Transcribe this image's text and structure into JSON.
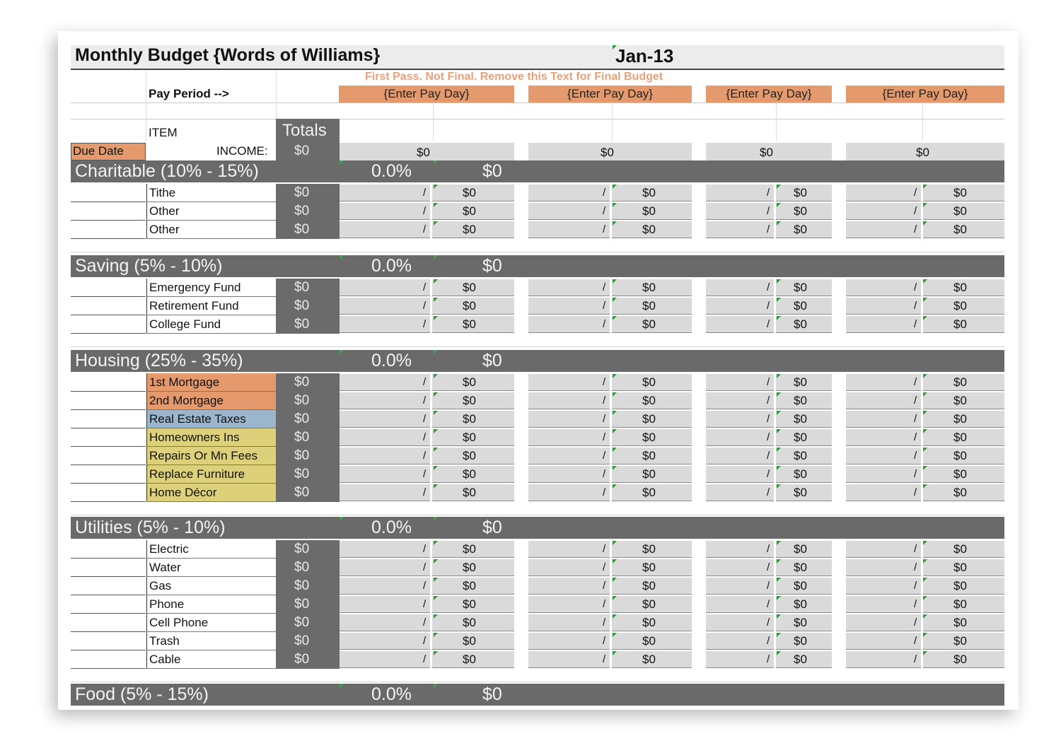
{
  "sheet": {
    "title": "Monthly Budget {Words of Williams}",
    "month": "Jan-13",
    "note": "First Pass. Not Final.  Remove this Text for Final Budget",
    "pay_period_label": "Pay Period -->",
    "pay_days": [
      "{Enter Pay Day}",
      "{Enter Pay Day}",
      "{Enter Pay Day}",
      "{Enter Pay Day}"
    ],
    "item_header": "ITEM",
    "totals_header": "Totals",
    "due_date_label": "Due Date",
    "income_label": "INCOME:",
    "income_total": "$0",
    "income_values": [
      "$0",
      "$0",
      "$0",
      "$0"
    ],
    "slash": "/",
    "colors": {
      "section_bg": "#6a6a6b",
      "accent_orange": "#e49a6c",
      "accent_blue": "#9bb5cc",
      "accent_yellow": "#dcd17a",
      "cell_grey": "#dadada",
      "note_text": "#e8a07a",
      "comment_marker": "#2c9a3b"
    },
    "sections": [
      {
        "name": "Charitable  (10% - 15%)",
        "percent": "0.0%",
        "amount": "$0",
        "items": [
          {
            "label": "Tithe",
            "total": "$0",
            "values": [
              "$0",
              "$0",
              "$0",
              "$0"
            ]
          },
          {
            "label": "Other",
            "total": "$0",
            "values": [
              "$0",
              "$0",
              "$0",
              "$0"
            ]
          },
          {
            "label": "Other",
            "total": "$0",
            "values": [
              "$0",
              "$0",
              "$0",
              "$0"
            ]
          }
        ]
      },
      {
        "name": "Saving (5% - 10%)",
        "percent": "0.0%",
        "amount": "$0",
        "items": [
          {
            "label": "Emergency Fund",
            "total": "$0",
            "values": [
              "$0",
              "$0",
              "$0",
              "$0"
            ]
          },
          {
            "label": "Retirement Fund",
            "total": "$0",
            "values": [
              "$0",
              "$0",
              "$0",
              "$0"
            ]
          },
          {
            "label": "College Fund",
            "total": "$0",
            "values": [
              "$0",
              "$0",
              "$0",
              "$0"
            ]
          }
        ]
      },
      {
        "name": "Housing (25% - 35%)",
        "percent": "0.0%",
        "amount": "$0",
        "items": [
          {
            "label": "1st Mortgage",
            "total": "$0",
            "values": [
              "$0",
              "$0",
              "$0",
              "$0"
            ],
            "highlight": "#e49a6c"
          },
          {
            "label": "2nd Mortgage",
            "total": "$0",
            "values": [
              "$0",
              "$0",
              "$0",
              "$0"
            ],
            "highlight": "#e49a6c"
          },
          {
            "label": "Real Estate Taxes",
            "total": "$0",
            "values": [
              "$0",
              "$0",
              "$0",
              "$0"
            ],
            "highlight": "#9bb5cc"
          },
          {
            "label": "Homeowners Ins",
            "total": "$0",
            "values": [
              "$0",
              "$0",
              "$0",
              "$0"
            ],
            "highlight": "#dcd17a"
          },
          {
            "label": "Repairs Or Mn Fees",
            "total": "$0",
            "values": [
              "$0",
              "$0",
              "$0",
              "$0"
            ],
            "highlight": "#dcd17a"
          },
          {
            "label": "Replace Furniture",
            "total": "$0",
            "values": [
              "$0",
              "$0",
              "$0",
              "$0"
            ],
            "highlight": "#dcd17a"
          },
          {
            "label": "Home Décor",
            "total": "$0",
            "values": [
              "$0",
              "$0",
              "$0",
              "$0"
            ],
            "highlight": "#dcd17a"
          }
        ]
      },
      {
        "name": "Utilities (5% - 10%)",
        "percent": "0.0%",
        "amount": "$0",
        "items": [
          {
            "label": "Electric",
            "total": "$0",
            "values": [
              "$0",
              "$0",
              "$0",
              "$0"
            ]
          },
          {
            "label": "Water",
            "total": "$0",
            "values": [
              "$0",
              "$0",
              "$0",
              "$0"
            ]
          },
          {
            "label": "Gas",
            "total": "$0",
            "values": [
              "$0",
              "$0",
              "$0",
              "$0"
            ]
          },
          {
            "label": "Phone",
            "total": "$0",
            "values": [
              "$0",
              "$0",
              "$0",
              "$0"
            ]
          },
          {
            "label": "Cell Phone",
            "total": "$0",
            "values": [
              "$0",
              "$0",
              "$0",
              "$0"
            ]
          },
          {
            "label": "Trash",
            "total": "$0",
            "values": [
              "$0",
              "$0",
              "$0",
              "$0"
            ]
          },
          {
            "label": "Cable",
            "total": "$0",
            "values": [
              "$0",
              "$0",
              "$0",
              "$0"
            ]
          }
        ]
      },
      {
        "name": "Food (5% - 15%)",
        "percent": "0.0%",
        "amount": "$0",
        "items": []
      }
    ]
  }
}
